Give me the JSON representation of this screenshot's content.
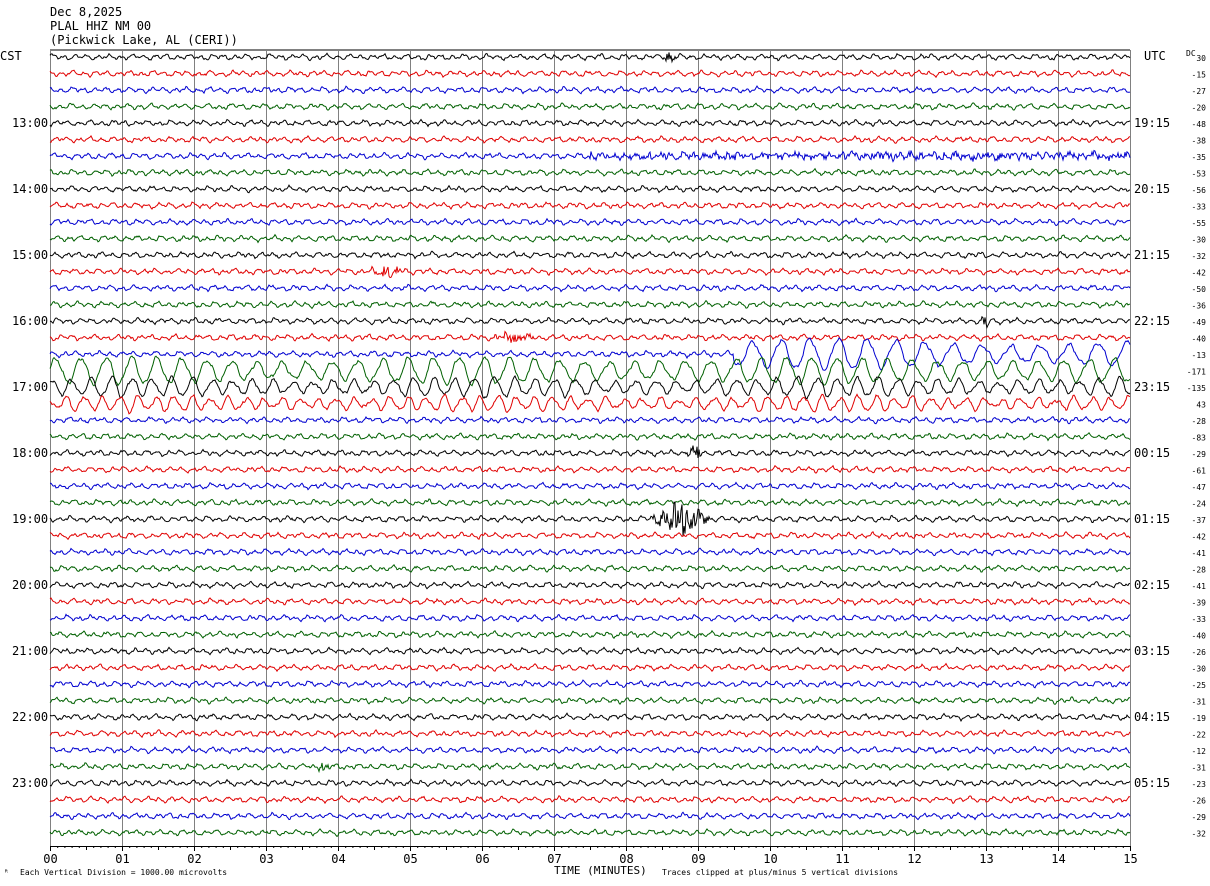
{
  "header": {
    "date": "Dec 8,2025",
    "station": "PLAL HHZ NM 00",
    "location": "(Pickwick Lake, AL (CERI))"
  },
  "left_tz": "CST",
  "right_tz": "UTC",
  "dc_label": "DC",
  "chart_data": {
    "type": "line",
    "title": "PLAL HHZ NM 00",
    "xlabel": "TIME (MINUTES)",
    "xlim": [
      0,
      15
    ],
    "x_ticks": [
      "00",
      "01",
      "02",
      "03",
      "04",
      "05",
      "06",
      "07",
      "08",
      "09",
      "10",
      "11",
      "12",
      "13",
      "14",
      "15"
    ],
    "trace_colors": [
      "#000000",
      "#e00000",
      "#0000d0",
      "#006000"
    ],
    "left_hour_labels": [
      "13:00",
      "14:00",
      "15:00",
      "16:00",
      "17:00",
      "18:00",
      "19:00",
      "20:00",
      "21:00",
      "22:00",
      "23:00"
    ],
    "right_hour_labels": [
      "19:15",
      "20:15",
      "21:15",
      "22:15",
      "23:15",
      "00:15",
      "01:15",
      "02:15",
      "03:15",
      "04:15",
      "05:15"
    ],
    "dc_offsets": [
      30,
      -15,
      -27,
      -20,
      -48,
      -38,
      -35,
      -53,
      -56,
      -33,
      -55,
      -30,
      -32,
      -42,
      -50,
      -36,
      -49,
      -40,
      -13,
      -171,
      -135,
      43,
      -28,
      -83,
      -29,
      -61,
      -47,
      -24,
      -37,
      -42,
      -41,
      -28,
      -41,
      -39,
      -33,
      -40,
      -26,
      -30,
      -25,
      -31,
      -19,
      -22,
      -12,
      -31,
      -23,
      -26,
      -29,
      -32
    ],
    "events": [
      {
        "trace": 19,
        "from_min": 0,
        "to_min": 15,
        "amp": 13,
        "period": 0.35,
        "kind": "surface"
      },
      {
        "trace": 18,
        "from_min": 9.5,
        "to_min": 15,
        "amp": 14,
        "period": 0.4,
        "kind": "surface"
      },
      {
        "trace": 20,
        "from_min": 0,
        "to_min": 15,
        "amp": 9,
        "period": 0.28,
        "kind": "surface"
      },
      {
        "trace": 21,
        "from_min": 0,
        "to_min": 15,
        "amp": 7,
        "period": 0.25,
        "kind": "surface"
      },
      {
        "trace": 6,
        "from_min": 7.5,
        "to_min": 15,
        "amp": 3,
        "period": 0.04,
        "kind": "noise"
      },
      {
        "trace": 28,
        "from_min": 8.3,
        "to_min": 9.2,
        "amp": 18,
        "period": 0.05,
        "kind": "burst"
      },
      {
        "trace": 43,
        "from_min": 3.7,
        "to_min": 3.9,
        "amp": 8,
        "period": 0.05,
        "kind": "burst"
      },
      {
        "trace": 13,
        "from_min": 4.4,
        "to_min": 5.0,
        "amp": 7,
        "period": 0.05,
        "kind": "burst"
      },
      {
        "trace": 17,
        "from_min": 6.1,
        "to_min": 6.8,
        "amp": 5,
        "period": 0.05,
        "kind": "burst"
      },
      {
        "trace": 24,
        "from_min": 8.8,
        "to_min": 9.1,
        "amp": 9,
        "period": 0.05,
        "kind": "burst"
      },
      {
        "trace": 0,
        "from_min": 8.5,
        "to_min": 8.7,
        "amp": 7,
        "period": 0.05,
        "kind": "burst"
      },
      {
        "trace": 16,
        "from_min": 12.9,
        "to_min": 13.1,
        "amp": 8,
        "period": 0.05,
        "kind": "burst"
      }
    ],
    "footer_left": "Each Vertical Division = 1000.00 microvolts",
    "footer_right": "Traces clipped at plus/minus 5 vertical divisions"
  }
}
